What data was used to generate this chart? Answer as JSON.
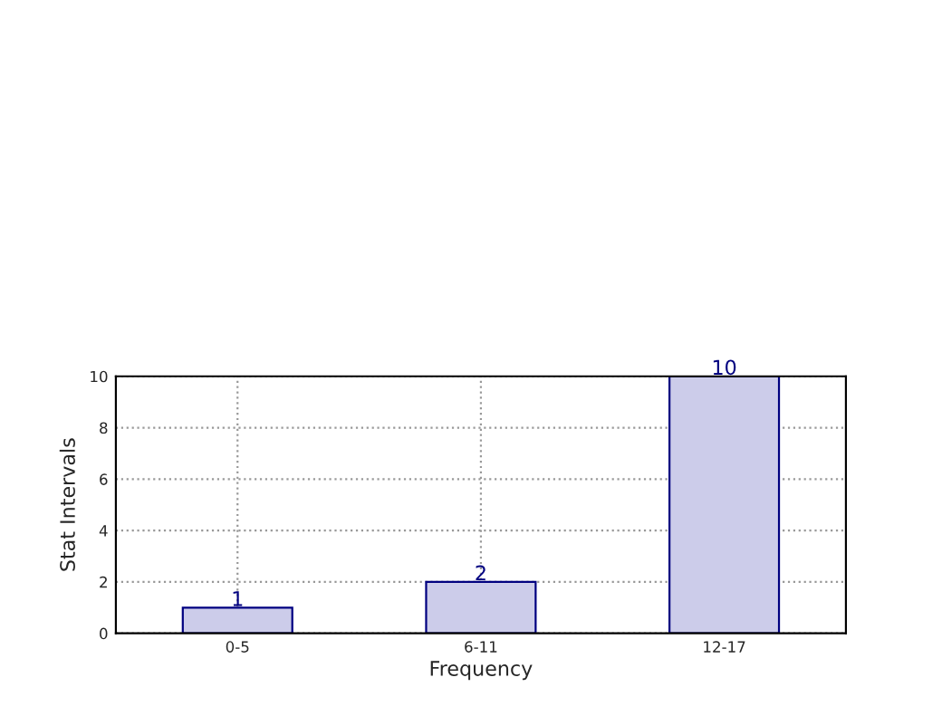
{
  "chart_data": {
    "type": "bar",
    "xlabel": "Frequency",
    "ylabel": "Stat Intervals",
    "categories": [
      "0-5",
      "6-11",
      "12-17"
    ],
    "values": [
      1,
      2,
      10
    ],
    "color": "#ccccea",
    "ylim": [
      0,
      10
    ],
    "yticks": [
      0,
      2,
      4,
      6,
      8,
      10
    ],
    "grid": true,
    "data_labels": true
  }
}
